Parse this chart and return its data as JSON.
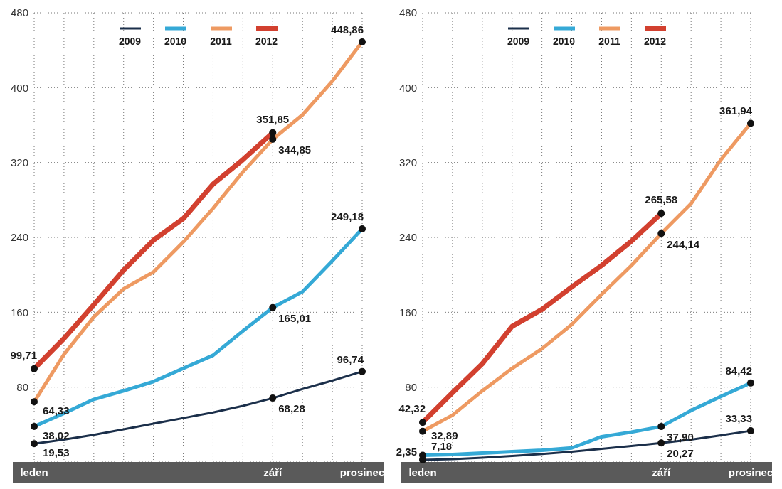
{
  "chart_data": [
    {
      "type": "line",
      "categories": [
        "leden",
        null,
        null,
        null,
        null,
        null,
        null,
        null,
        "září",
        null,
        null,
        "prosinec"
      ],
      "ylim": [
        0,
        480
      ],
      "yticks": [
        80,
        160,
        240,
        320,
        400,
        480
      ],
      "grid": true,
      "legend": "top",
      "line_style": "solid",
      "series": [
        {
          "name": "2009",
          "color": "#1b2f4a",
          "values": [
            19.53,
            24,
            29,
            35,
            41,
            47,
            53,
            60,
            68.28,
            78,
            87,
            96.74
          ],
          "value_labels": [
            "19,53",
            null,
            null,
            null,
            null,
            null,
            null,
            null,
            "68,28",
            null,
            null,
            "96,74"
          ]
        },
        {
          "name": "2010",
          "color": "#35a9d6",
          "values": [
            38.02,
            52,
            67,
            76,
            86,
            100,
            114,
            140,
            165.01,
            182,
            215,
            249.18
          ],
          "value_labels": [
            "38,02",
            null,
            null,
            null,
            null,
            null,
            null,
            null,
            "165,01",
            null,
            null,
            "249,18"
          ]
        },
        {
          "name": "2011",
          "color": "#ee9a62",
          "values": [
            64.33,
            115,
            155,
            185,
            203,
            235,
            271,
            310,
            344.85,
            371,
            407,
            448.86
          ],
          "value_labels": [
            "64,33",
            null,
            null,
            null,
            null,
            null,
            null,
            null,
            "344,85",
            null,
            null,
            "448,86"
          ]
        },
        {
          "name": "2012",
          "color": "#d2402f",
          "values": [
            99.71,
            132,
            168,
            205,
            237,
            260,
            297,
            323,
            351.85,
            null,
            null,
            null
          ],
          "value_labels": [
            "99,71",
            null,
            null,
            null,
            null,
            null,
            null,
            null,
            "351,85",
            null,
            null,
            null
          ]
        }
      ]
    },
    {
      "type": "line",
      "categories": [
        "leden",
        null,
        null,
        null,
        null,
        null,
        null,
        null,
        "září",
        null,
        null,
        "prosinec"
      ],
      "ylim": [
        0,
        480
      ],
      "yticks": [
        80,
        160,
        240,
        320,
        400,
        480
      ],
      "grid": true,
      "legend": "top",
      "line_style": "solid",
      "series": [
        {
          "name": "2009",
          "color": "#1b2f4a",
          "values": [
            2.35,
            3,
            4.5,
            6.5,
            8.5,
            11,
            14,
            17,
            20.27,
            24,
            28.5,
            33.33
          ],
          "value_labels": [
            "2,35",
            null,
            null,
            null,
            null,
            null,
            null,
            null,
            "20,27",
            null,
            null,
            "33,33"
          ]
        },
        {
          "name": "2010",
          "color": "#35a9d6",
          "values": [
            7.18,
            8,
            9.5,
            11,
            12.5,
            15,
            27,
            32,
            37.9,
            55,
            70,
            84.42
          ],
          "value_labels": [
            "7,18",
            null,
            null,
            null,
            null,
            null,
            null,
            null,
            "37,90",
            null,
            null,
            "84,42"
          ]
        },
        {
          "name": "2011",
          "color": "#ee9a62",
          "values": [
            32.89,
            50,
            76,
            100,
            121,
            147,
            179,
            210,
            244.14,
            276,
            323,
            361.94
          ],
          "value_labels": [
            "32,89",
            null,
            null,
            null,
            null,
            null,
            null,
            null,
            "244,14",
            null,
            null,
            "361,94"
          ]
        },
        {
          "name": "2012",
          "color": "#d2402f",
          "values": [
            42.32,
            74,
            105,
            145,
            163,
            187,
            210,
            236,
            265.58,
            null,
            null,
            null
          ],
          "value_labels": [
            "42,32",
            null,
            null,
            null,
            null,
            null,
            null,
            null,
            "265,58",
            null,
            null,
            null
          ]
        }
      ]
    }
  ]
}
